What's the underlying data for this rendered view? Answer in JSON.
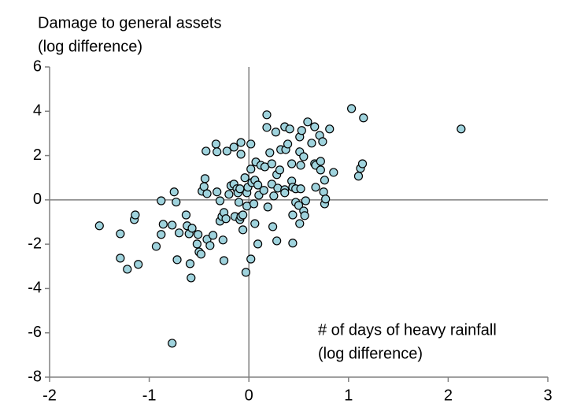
{
  "chart_data": {
    "type": "scatter",
    "y_label": [
      "Damage to general assets",
      "(log difference)"
    ],
    "x_label": [
      "# of days of heavy rainfall",
      "(log difference)"
    ],
    "xlim": [
      -2,
      3
    ],
    "xticks": [
      -2,
      -1,
      0,
      1,
      2,
      3
    ],
    "ylim": [
      -8,
      6
    ],
    "yticks": [
      -8,
      -6,
      -4,
      -2,
      0,
      2,
      4,
      6
    ],
    "zero_lines": true,
    "color": "#9fd3dd",
    "edge_color": "#000000",
    "x": [
      -1.5,
      -1.29,
      -1.15,
      -1.14,
      -1.29,
      -1.22,
      -1.11,
      -0.88,
      -0.75,
      -0.73,
      -0.93,
      -0.88,
      -0.86,
      -0.77,
      -0.72,
      -0.7,
      -0.63,
      -0.62,
      -0.6,
      -0.59,
      -0.58,
      -0.57,
      -0.52,
      -0.51,
      -0.5,
      -0.48,
      -0.47,
      -0.44,
      -0.45,
      -0.42,
      -0.43,
      -0.42,
      -0.39,
      -0.36,
      -0.33,
      -0.32,
      -0.32,
      -0.29,
      -0.29,
      -0.27,
      -0.26,
      -0.25,
      -0.25,
      -0.22,
      -0.23,
      -0.2,
      -0.18,
      -0.15,
      -0.15,
      -0.14,
      -0.12,
      -0.11,
      -0.1,
      -0.09,
      -0.08,
      -0.09,
      -0.08,
      -0.08,
      -0.06,
      -0.06,
      -0.04,
      -0.03,
      -0.02,
      -0.02,
      -0.01,
      0.02,
      0.02,
      0.02,
      0.03,
      0.05,
      0.06,
      0.06,
      0.07,
      0.09,
      0.09,
      0.1,
      0.12,
      0.15,
      0.16,
      0.18,
      0.18,
      0.19,
      0.21,
      0.23,
      0.23,
      0.24,
      0.25,
      0.27,
      0.28,
      0.28,
      0.29,
      0.31,
      0.32,
      0.36,
      0.36,
      0.36,
      0.37,
      0.39,
      0.41,
      0.43,
      0.43,
      0.44,
      0.44,
      0.44,
      0.47,
      0.47,
      0.51,
      0.5,
      0.51,
      0.51,
      0.52,
      0.52,
      0.53,
      0.55,
      0.55,
      0.56,
      0.57,
      0.59,
      0.63,
      0.66,
      0.67,
      0.67,
      0.71,
      0.72,
      0.72,
      0.74,
      0.75,
      0.76,
      0.76,
      0.77,
      0.81,
      0.85,
      0.66,
      1.03,
      1.1,
      1.12,
      1.14,
      1.15,
      2.13,
      -0.77
    ],
    "y": [
      -1.17,
      -1.53,
      -0.89,
      -0.68,
      -2.63,
      -3.13,
      -2.91,
      -0.04,
      0.36,
      -0.1,
      -2.1,
      -1.56,
      -1.1,
      -1.14,
      -2.7,
      -1.49,
      -0.68,
      -1.17,
      -1.53,
      -2.88,
      -3.52,
      -1.28,
      -1.99,
      -1.56,
      -2.35,
      -2.45,
      0.39,
      0.96,
      0.6,
      0.28,
      2.2,
      -1.78,
      -2.06,
      -1.6,
      2.52,
      2.17,
      0.36,
      -0.96,
      -0.04,
      -0.75,
      -1.81,
      -0.57,
      -2.74,
      2.2,
      -0.85,
      0.25,
      0.64,
      0.71,
      2.38,
      -0.75,
      0.5,
      0.32,
      -0.11,
      -0.89,
      2.59,
      0.5,
      -0.75,
      2.06,
      -1.35,
      -0.68,
      1.0,
      -3.27,
      0.32,
      -0.28,
      0.57,
      2.52,
      -2.67,
      1.39,
      0.78,
      -0.18,
      -1.07,
      0.89,
      1.71,
      0.67,
      -1.99,
      0.21,
      1.56,
      0.43,
      1.49,
      3.84,
      3.27,
      -0.32,
      2.13,
      0.71,
      1.63,
      -1.21,
      0.18,
      3.06,
      1.14,
      -1.85,
      0.53,
      1.35,
      2.27,
      0.46,
      0.32,
      3.3,
      2.27,
      2.52,
      3.2,
      0.85,
      1.63,
      -0.68,
      0.57,
      -1.95,
      0.5,
      -0.11,
      2.84,
      -0.25,
      -1.07,
      2.17,
      1.56,
      0.5,
      3.13,
      1.95,
      -0.5,
      -0.71,
      -0.04,
      3.52,
      2.56,
      1.63,
      1.56,
      0.57,
      2.91,
      1.74,
      1.35,
      2.63,
      0.36,
      0.89,
      -0.18,
      0.04,
      3.2,
      1.24,
      3.3,
      4.12,
      1.07,
      1.42,
      1.63,
      3.7,
      3.2,
      -6.47
    ]
  }
}
